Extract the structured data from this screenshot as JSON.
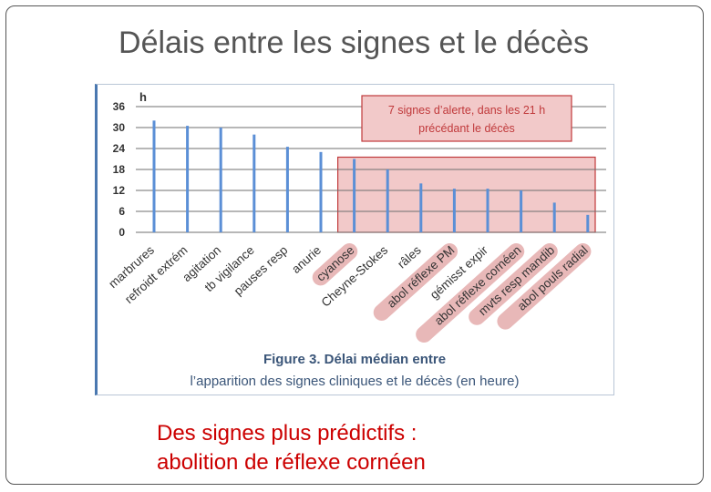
{
  "slide": {
    "title": "Délais entre les signes et le décès",
    "bottom_line1": "Des signes plus prédictifs :",
    "bottom_line2": "abolition de réflexe cornéen"
  },
  "chart_data": {
    "type": "bar",
    "ylabel": "h",
    "ylim": [
      0,
      36
    ],
    "yticks": [
      0,
      6,
      12,
      18,
      24,
      30,
      36
    ],
    "grid": true,
    "categories": [
      "marbrures",
      "refroidt extrém",
      "agitation",
      "tb vigilance",
      "pauses resp",
      "anurie",
      "cyanose",
      "Cheyne-Stokes",
      "râles",
      "abol réflexe PM",
      "gémisst expir",
      "abol réflexe cornéen",
      "mvts resp mandib",
      "abol pouls radial"
    ],
    "values": [
      32,
      30.5,
      30,
      28,
      24.5,
      23,
      21,
      18,
      14,
      12.5,
      12.5,
      12,
      8.5,
      5
    ],
    "highlighted_categories": [
      "cyanose",
      "abol réflexe PM",
      "abol réflexe cornéen",
      "mvts resp mandib",
      "abol pouls radial"
    ],
    "annotation": "7 signes d’alerte, dans les 21 h précédant le décès",
    "annotation_line1": "7 signes d’alerte, dans les  21  h",
    "annotation_line2": "précédant le décès",
    "caption_line1": "Figure 3. Délai médian entre",
    "caption_line2": "l’apparition des signes cliniques et le décès (en heure)",
    "colors": {
      "bar": "#5b8fd6",
      "grid": "#6f6f6f",
      "highlight_box": "#c0393b",
      "highlight_fill": "#f2c9c9",
      "caption": "#3b5679"
    }
  }
}
